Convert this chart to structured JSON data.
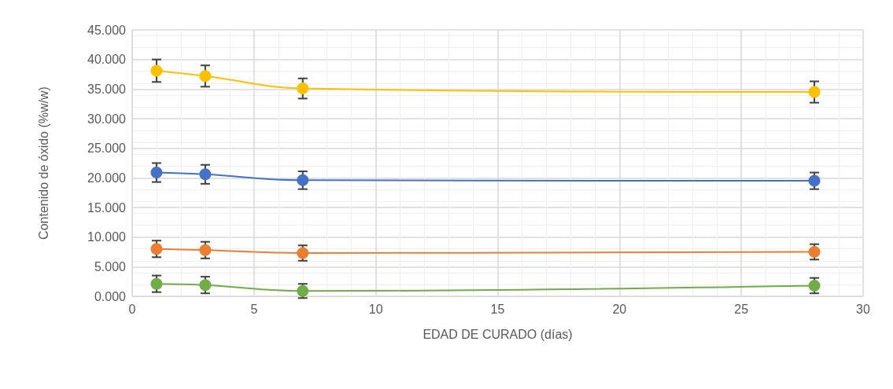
{
  "chart_data": {
    "type": "line",
    "xlabel": "EDAD DE CURADO (días)",
    "ylabel": "Contenido de óxido (%w/w)",
    "x": [
      1,
      3,
      7,
      28
    ],
    "series": [
      {
        "color": "#ffc000",
        "values": [
          38.1,
          37.2,
          35.1,
          34.5
        ],
        "errors": [
          1.9,
          1.8,
          1.7,
          1.8
        ]
      },
      {
        "color": "#4472c4",
        "values": [
          20.9,
          20.6,
          19.6,
          19.5
        ],
        "errors": [
          1.6,
          1.6,
          1.5,
          1.4
        ]
      },
      {
        "color": "#ed7d31",
        "values": [
          8.0,
          7.8,
          7.3,
          7.5
        ],
        "errors": [
          1.4,
          1.4,
          1.3,
          1.3
        ]
      },
      {
        "color": "#70ad47",
        "values": [
          2.1,
          1.9,
          0.9,
          1.8
        ],
        "errors": [
          1.4,
          1.4,
          1.2,
          1.3
        ]
      }
    ],
    "xlim": [
      0,
      30
    ],
    "xticks": [
      0,
      5,
      10,
      15,
      20,
      25,
      30
    ],
    "ylim": [
      0,
      45
    ],
    "yticks": [
      {
        "value": 0,
        "label": "0.000"
      },
      {
        "value": 5,
        "label": "5.000"
      },
      {
        "value": 10,
        "label": "10.000"
      },
      {
        "value": 15,
        "label": "15.000"
      },
      {
        "value": 20,
        "label": "20.000"
      },
      {
        "value": 25,
        "label": "25.000"
      },
      {
        "value": 30,
        "label": "30.000"
      },
      {
        "value": 35,
        "label": "35.000"
      },
      {
        "value": 40,
        "label": "40.000"
      },
      {
        "value": 45,
        "label": "45.000"
      }
    ],
    "grid": true,
    "marker": "circle",
    "line_style": "solid"
  }
}
